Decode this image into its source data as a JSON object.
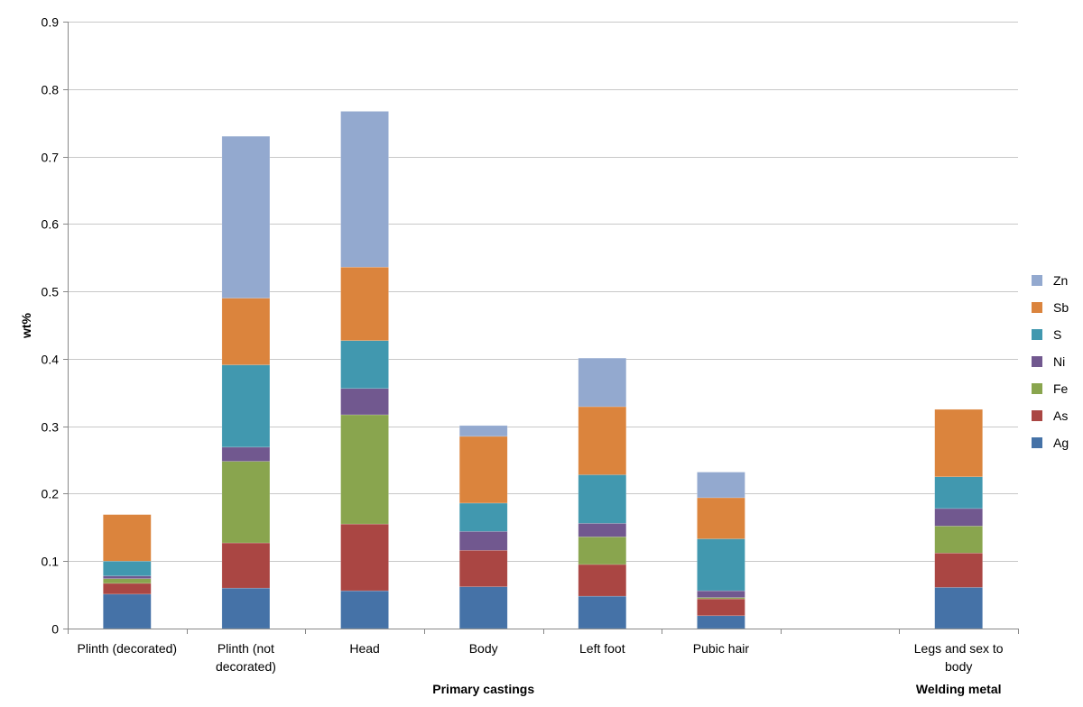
{
  "chart_data": {
    "type": "bar",
    "stacked": true,
    "ylabel": "wt%",
    "xlabel": "",
    "ylim": [
      0,
      0.9
    ],
    "yticks": [
      0,
      0.1,
      0.2,
      0.3,
      0.4,
      0.5,
      0.6,
      0.7,
      0.8,
      0.9
    ],
    "grid": true,
    "legend": "right",
    "categories": [
      [
        "Plinth (decorated)"
      ],
      [
        "Plinth (not",
        "decorated)"
      ],
      [
        "Head"
      ],
      [
        "Body"
      ],
      [
        "Left foot"
      ],
      [
        "Pubic hair"
      ],
      [
        ""
      ],
      [
        "Legs and sex to",
        "body"
      ]
    ],
    "groups": [
      {
        "label": "Primary castings",
        "from": 0,
        "to": 6
      },
      {
        "label": "Welding metal",
        "from": 7,
        "to": 7
      }
    ],
    "series": [
      {
        "name": "Ag",
        "color": "#4572A7",
        "values": [
          0.051,
          0.06,
          0.056,
          0.062,
          0.048,
          0.019,
          0,
          0.061
        ]
      },
      {
        "name": "As",
        "color": "#AA4643",
        "values": [
          0.016,
          0.067,
          0.099,
          0.054,
          0.047,
          0.025,
          0,
          0.051
        ]
      },
      {
        "name": "Fe",
        "color": "#89A54E",
        "values": [
          0.007,
          0.121,
          0.162,
          0.0,
          0.041,
          0.002,
          0,
          0.04
        ]
      },
      {
        "name": "Ni",
        "color": "#71588F",
        "values": [
          0.004,
          0.021,
          0.039,
          0.028,
          0.02,
          0.01,
          0,
          0.026
        ]
      },
      {
        "name": "S",
        "color": "#4198AF",
        "values": [
          0.022,
          0.122,
          0.071,
          0.042,
          0.072,
          0.077,
          0,
          0.047
        ]
      },
      {
        "name": "Sb",
        "color": "#DB843D",
        "values": [
          0.069,
          0.099,
          0.109,
          0.099,
          0.101,
          0.061,
          0,
          0.1
        ]
      },
      {
        "name": "Zn",
        "color": "#93A9CF",
        "values": [
          0.0,
          0.24,
          0.231,
          0.016,
          0.072,
          0.038,
          0,
          0.0
        ]
      }
    ]
  }
}
